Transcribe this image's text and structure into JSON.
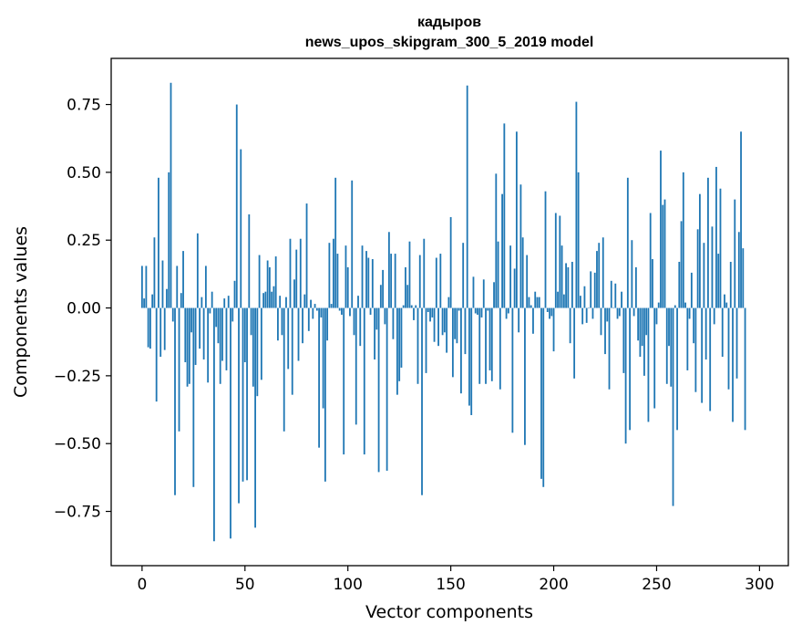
{
  "chart_data": {
    "type": "bar",
    "title": "кадыров",
    "subtitle": "news_upos_skipgram_300_5_2019 model",
    "xlabel": "Vector components",
    "ylabel": "Components values",
    "xlim": [
      -15,
      314
    ],
    "ylim": [
      -0.95,
      0.92
    ],
    "x_ticks": [
      0,
      50,
      100,
      150,
      200,
      250,
      300
    ],
    "x_tick_labels": [
      "0",
      "50",
      "100",
      "150",
      "200",
      "250",
      "300"
    ],
    "y_ticks": [
      0.75,
      0.5,
      0.25,
      0.0,
      -0.25,
      -0.5,
      -0.75
    ],
    "y_tick_labels": [
      "0.75",
      "0.50",
      "0.25",
      "0.00",
      "−0.25",
      "−0.50",
      "−0.75"
    ],
    "grid": false,
    "bar_color": "#1f77b4",
    "values": [
      0.155,
      0.035,
      0.155,
      -0.145,
      -0.15,
      0.05,
      0.26,
      -0.345,
      0.48,
      -0.18,
      0.175,
      -0.155,
      0.07,
      0.5,
      0.83,
      -0.05,
      -0.69,
      0.155,
      -0.455,
      0.055,
      0.21,
      -0.2,
      -0.29,
      -0.28,
      -0.09,
      -0.66,
      -0.21,
      0.275,
      -0.15,
      0.04,
      -0.19,
      0.155,
      -0.275,
      -0.02,
      0.06,
      -0.86,
      -0.07,
      -0.13,
      -0.28,
      -0.195,
      0.035,
      -0.23,
      0.045,
      -0.85,
      -0.05,
      0.1,
      0.75,
      -0.72,
      0.585,
      -0.64,
      -0.2,
      -0.635,
      0.345,
      -0.1,
      -0.29,
      -0.81,
      -0.325,
      0.195,
      -0.265,
      0.055,
      0.06,
      0.175,
      0.15,
      0.06,
      0.08,
      0.19,
      -0.12,
      0.045,
      -0.1,
      -0.455,
      0.04,
      -0.225,
      0.255,
      -0.32,
      0.105,
      0.215,
      -0.195,
      0.255,
      -0.13,
      0.05,
      0.385,
      -0.085,
      0.03,
      -0.04,
      0.015,
      -0.01,
      -0.515,
      -0.035,
      -0.37,
      -0.64,
      -0.12,
      0.24,
      0.015,
      0.255,
      0.48,
      0.2,
      -0.01,
      -0.025,
      -0.54,
      0.23,
      0.15,
      -0.03,
      0.47,
      -0.1,
      -0.43,
      0.045,
      -0.14,
      0.23,
      -0.54,
      0.21,
      0.185,
      -0.025,
      0.18,
      -0.19,
      -0.08,
      -0.605,
      0.085,
      0.14,
      -0.06,
      -0.6,
      0.28,
      0.2,
      -0.115,
      0.2,
      -0.32,
      -0.27,
      -0.22,
      0.01,
      0.15,
      0.085,
      0.245,
      0.01,
      -0.045,
      0.01,
      -0.28,
      0.195,
      -0.69,
      0.255,
      -0.24,
      -0.015,
      -0.05,
      -0.035,
      -0.125,
      0.185,
      -0.14,
      0.2,
      -0.1,
      -0.09,
      -0.165,
      0.04,
      0.335,
      -0.255,
      -0.115,
      -0.13,
      -0.01,
      -0.315,
      0.24,
      -0.17,
      0.82,
      -0.36,
      -0.395,
      0.115,
      -0.02,
      -0.025,
      -0.28,
      -0.035,
      0.105,
      -0.28,
      -0.01,
      -0.23,
      -0.27,
      0.095,
      0.495,
      0.245,
      -0.3,
      0.42,
      0.68,
      -0.04,
      -0.02,
      0.23,
      -0.46,
      0.145,
      0.65,
      -0.09,
      0.455,
      0.26,
      -0.505,
      0.195,
      0.04,
      0.01,
      -0.095,
      0.06,
      0.04,
      0.04,
      -0.63,
      -0.66,
      0.43,
      -0.015,
      -0.04,
      -0.03,
      -0.16,
      0.35,
      0.06,
      0.34,
      0.23,
      0.05,
      0.165,
      0.15,
      -0.13,
      0.17,
      -0.26,
      0.76,
      0.5,
      0.045,
      -0.06,
      0.08,
      -0.055,
      0.0,
      0.135,
      -0.04,
      0.13,
      0.21,
      0.24,
      -0.1,
      0.26,
      -0.17,
      -0.05,
      -0.3,
      0.1,
      0.0,
      0.09,
      -0.04,
      -0.03,
      0.06,
      -0.24,
      -0.5,
      0.48,
      -0.45,
      0.25,
      -0.03,
      0.15,
      -0.12,
      -0.18,
      -0.14,
      -0.25,
      -0.1,
      -0.42,
      0.35,
      0.18,
      -0.37,
      -0.06,
      0.02,
      0.58,
      0.38,
      0.4,
      -0.28,
      -0.14,
      -0.29,
      -0.73,
      0.01,
      -0.45,
      0.17,
      0.32,
      0.5,
      0.02,
      -0.23,
      -0.04,
      0.13,
      -0.13,
      -0.31,
      0.29,
      0.42,
      -0.35,
      0.24,
      -0.19,
      0.48,
      -0.38,
      0.3,
      -0.06,
      0.52,
      0.2,
      0.44,
      -0.18,
      0.05,
      0.02,
      -0.3,
      0.17,
      -0.42,
      0.4,
      -0.26,
      0.28,
      0.65,
      0.22,
      -0.45
    ]
  }
}
